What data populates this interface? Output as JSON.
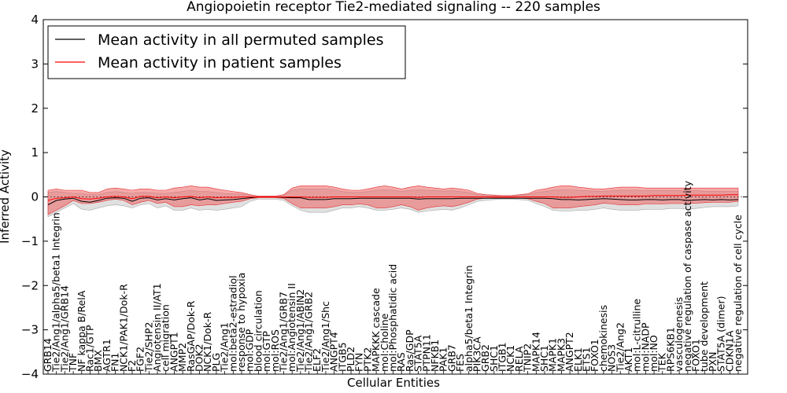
{
  "chart_data": {
    "type": "line",
    "title": "Angiopoietin receptor Tie2-mediated signaling -- 220 samples",
    "xlabel": "Cellular Entities",
    "ylabel": "Inferred Activity",
    "ylim": [
      -4,
      4
    ],
    "yticks": [
      "4",
      "3",
      "2",
      "1",
      "0",
      "−1",
      "−2",
      "−3",
      "−4"
    ],
    "legend": {
      "placement": "top-left",
      "entries": [
        {
          "label": "Mean activity in all permuted samples",
          "color": "#000000"
        },
        {
          "label": "Mean activity in patient samples",
          "color": "#ff0000"
        }
      ]
    },
    "categories": [
      "GRB14",
      "Tie2/Ang1/alpha5/beta1 Integrin",
      "Tie2/Ang1/GRB14",
      "TNF",
      "NF kappa B/RelA",
      "Rac1/GTP",
      "BMX",
      "AGTR1",
      "FN1",
      "NCK1/PAK1/Dok-R",
      "F2",
      "FGF2",
      "Tie2/SHP2",
      "Angiotensin II/AT1",
      "cell migration",
      "ANGPT1",
      "MMP2",
      "RasGAP/Dok-R",
      "DOK2",
      "NCK1/Dok-R",
      "PLG",
      "Tie2/Ang1",
      "mol:beta2-estradiol",
      "response to hypoxia",
      "mol:GDP",
      "blood circulation",
      "mol:GTP",
      "mol:ROS",
      "Tie2/Ang1/GRB7",
      "mol:Angiotensin II",
      "Tie2/Ang1/ABIN2",
      "Tie2/Ang1/GRB2",
      "ELF2",
      "Tie2/Ang1/Shc",
      "ANGPT4",
      "ITGB5",
      "PLD2",
      "FYN",
      "PTK2",
      "MAPKKK cascade",
      "mol:Choline",
      "mol:Phosphatidic acid",
      "RAS",
      "Ras/GDP",
      "STAT5A",
      "PTPN11",
      "NFKB1",
      "PAK1",
      "GRB7",
      "FES",
      "alpha5/beta1 Integrin",
      "PIK3CA",
      "GRB2",
      "SHC1",
      "ITGB1",
      "NCK1",
      "RELA",
      "TNIP2",
      "MAPK14",
      "SHC1",
      "MAPK1",
      "MAPK3",
      "ANGPT2",
      "ELK1",
      "ETS1",
      "FOXO1",
      "chemokinesis",
      "NOS3",
      "Tie2/Ang2",
      "AKT1",
      "mol:L-citrulline",
      "mol:NADP",
      "mol:NO",
      "TEK",
      "RPS6KB1",
      "vasculogenesis",
      "negative regulation of caspase activity",
      "FOXO1",
      "tube development",
      "PXN",
      "STAT5A (dimer)",
      "CDKN1A",
      "negative regulation of cell cycle"
    ],
    "series": [
      {
        "name": "Mean activity in all permuted samples",
        "color": "#000000",
        "mean": [
          -0.18,
          -0.08,
          -0.05,
          -0.03,
          -0.1,
          -0.12,
          -0.08,
          -0.03,
          -0.02,
          -0.03,
          -0.1,
          -0.03,
          -0.02,
          -0.07,
          -0.04,
          -0.07,
          -0.04,
          -0.02,
          -0.07,
          -0.04,
          -0.08,
          -0.07,
          -0.06,
          -0.04,
          -0.02,
          0,
          0,
          0,
          -0.01,
          -0.02,
          -0.02,
          -0.06,
          -0.06,
          -0.06,
          -0.04,
          -0.04,
          -0.04,
          -0.03,
          -0.03,
          -0.03,
          -0.03,
          -0.03,
          -0.03,
          -0.03,
          -0.05,
          -0.04,
          -0.04,
          -0.04,
          -0.04,
          -0.03,
          -0.03,
          -0.03,
          -0.03,
          -0.03,
          -0.03,
          -0.03,
          -0.03,
          -0.03,
          -0.03,
          -0.03,
          -0.04,
          -0.06,
          -0.06,
          -0.07,
          -0.06,
          -0.05,
          -0.04,
          -0.05,
          -0.06,
          -0.07,
          -0.07,
          -0.06,
          -0.06,
          -0.07,
          -0.06,
          -0.06,
          -0.08,
          -0.07,
          -0.06,
          -0.07,
          -0.06,
          -0.07,
          -0.06
        ],
        "lower": [
          -0.45,
          -0.35,
          -0.25,
          -0.15,
          -0.28,
          -0.3,
          -0.25,
          -0.2,
          -0.18,
          -0.2,
          -0.25,
          -0.18,
          -0.15,
          -0.25,
          -0.2,
          -0.3,
          -0.3,
          -0.25,
          -0.3,
          -0.28,
          -0.3,
          -0.28,
          -0.25,
          -0.22,
          -0.1,
          -0.05,
          -0.05,
          -0.05,
          -0.08,
          -0.2,
          -0.3,
          -0.35,
          -0.35,
          -0.35,
          -0.3,
          -0.25,
          -0.25,
          -0.22,
          -0.25,
          -0.3,
          -0.3,
          -0.28,
          -0.25,
          -0.28,
          -0.35,
          -0.32,
          -0.3,
          -0.28,
          -0.3,
          -0.25,
          -0.18,
          -0.1,
          -0.08,
          -0.06,
          -0.05,
          -0.05,
          -0.06,
          -0.08,
          -0.15,
          -0.22,
          -0.3,
          -0.32,
          -0.32,
          -0.3,
          -0.3,
          -0.28,
          -0.25,
          -0.28,
          -0.3,
          -0.3,
          -0.3,
          -0.28,
          -0.28,
          -0.28,
          -0.26,
          -0.26,
          -0.28,
          -0.26,
          -0.24,
          -0.22,
          -0.22,
          -0.22,
          -0.2
        ],
        "upper": [
          0.1,
          0.12,
          0.1,
          0.08,
          0.08,
          0.05,
          0.05,
          0.1,
          0.12,
          0.1,
          0.08,
          0.1,
          0.1,
          0.08,
          0.08,
          0.1,
          0.12,
          0.15,
          0.12,
          0.12,
          0.1,
          0.08,
          0.07,
          0.06,
          0.04,
          0.02,
          0.02,
          0.02,
          0.04,
          0.15,
          0.18,
          0.18,
          0.18,
          0.18,
          0.16,
          0.12,
          0.1,
          0.1,
          0.12,
          0.15,
          0.16,
          0.15,
          0.12,
          0.15,
          0.16,
          0.15,
          0.14,
          0.13,
          0.14,
          0.12,
          0.1,
          0.05,
          0.04,
          0.03,
          0.03,
          0.03,
          0.04,
          0.05,
          0.1,
          0.12,
          0.15,
          0.16,
          0.16,
          0.15,
          0.14,
          0.13,
          0.12,
          0.14,
          0.15,
          0.15,
          0.15,
          0.14,
          0.14,
          0.14,
          0.14,
          0.14,
          0.14,
          0.14,
          0.13,
          0.13,
          0.13,
          0.13,
          0.12
        ]
      },
      {
        "name": "Mean activity in patient samples",
        "color": "#ff0000",
        "mean": [
          -0.08,
          -0.03,
          -0.02,
          0,
          -0.04,
          -0.05,
          -0.03,
          0,
          0.01,
          0,
          -0.04,
          0.01,
          0.01,
          -0.02,
          0,
          -0.02,
          0,
          0.01,
          -0.02,
          0,
          -0.02,
          -0.01,
          -0.01,
          0,
          0,
          0,
          0,
          0,
          0,
          0,
          0,
          -0.01,
          -0.01,
          -0.01,
          0,
          0,
          0,
          0,
          0,
          0,
          0,
          0,
          0,
          0,
          -0.01,
          0,
          0,
          0,
          0,
          0,
          0,
          0,
          0,
          0,
          0,
          0,
          0,
          0,
          0,
          0,
          0,
          -0.01,
          -0.01,
          0,
          0.01,
          0.01,
          0.02,
          0.02,
          0.02,
          0.02,
          0.02,
          0.02,
          0.03,
          0.03,
          0.03,
          0.03,
          0.04,
          0.04,
          0.04,
          0.04,
          0.04,
          0.05,
          0.05
        ],
        "lower": [
          -0.4,
          -0.3,
          -0.2,
          -0.08,
          -0.15,
          -0.15,
          -0.12,
          -0.08,
          -0.05,
          -0.08,
          -0.18,
          -0.12,
          -0.08,
          -0.15,
          -0.12,
          -0.22,
          -0.22,
          -0.18,
          -0.2,
          -0.18,
          -0.18,
          -0.15,
          -0.12,
          -0.1,
          -0.04,
          -0.02,
          -0.02,
          -0.02,
          -0.03,
          -0.15,
          -0.25,
          -0.25,
          -0.25,
          -0.25,
          -0.22,
          -0.18,
          -0.18,
          -0.16,
          -0.18,
          -0.25,
          -0.25,
          -0.22,
          -0.18,
          -0.22,
          -0.3,
          -0.25,
          -0.22,
          -0.2,
          -0.22,
          -0.18,
          -0.12,
          -0.05,
          -0.03,
          -0.02,
          -0.02,
          -0.02,
          -0.03,
          -0.04,
          -0.1,
          -0.15,
          -0.25,
          -0.25,
          -0.25,
          -0.22,
          -0.2,
          -0.18,
          -0.14,
          -0.16,
          -0.18,
          -0.18,
          -0.18,
          -0.16,
          -0.16,
          -0.16,
          -0.15,
          -0.15,
          -0.15,
          -0.14,
          -0.13,
          -0.12,
          -0.12,
          -0.12,
          -0.1
        ],
        "upper": [
          0.15,
          0.18,
          0.15,
          0.15,
          0.15,
          0.1,
          0.1,
          0.18,
          0.2,
          0.18,
          0.15,
          0.18,
          0.18,
          0.15,
          0.15,
          0.2,
          0.22,
          0.25,
          0.22,
          0.22,
          0.18,
          0.15,
          0.12,
          0.1,
          0.05,
          0.02,
          0.02,
          0.02,
          0.05,
          0.2,
          0.25,
          0.25,
          0.25,
          0.25,
          0.22,
          0.18,
          0.15,
          0.15,
          0.18,
          0.22,
          0.25,
          0.22,
          0.18,
          0.22,
          0.25,
          0.22,
          0.2,
          0.18,
          0.2,
          0.18,
          0.15,
          0.08,
          0.05,
          0.04,
          0.03,
          0.03,
          0.05,
          0.07,
          0.15,
          0.18,
          0.22,
          0.25,
          0.25,
          0.22,
          0.2,
          0.18,
          0.18,
          0.2,
          0.22,
          0.22,
          0.22,
          0.2,
          0.2,
          0.2,
          0.2,
          0.2,
          0.2,
          0.2,
          0.2,
          0.2,
          0.2,
          0.2,
          0.2
        ]
      }
    ]
  }
}
